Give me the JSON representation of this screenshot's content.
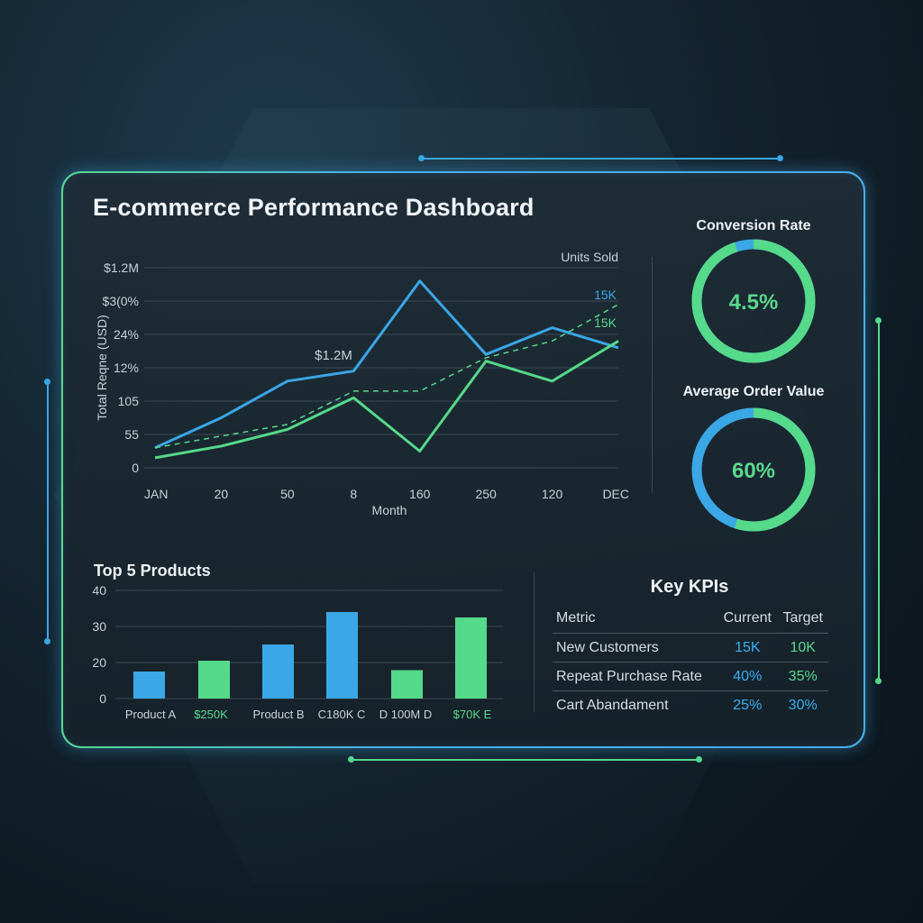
{
  "title": "E-commerce Performance Dashboard",
  "colors": {
    "blue": "#3aa7e6",
    "green": "#55d98a",
    "grid": "#3b4a54",
    "text": "#c9d2d8"
  },
  "chart_data": [
    {
      "type": "line",
      "name": "trend",
      "y_tick_labels": [
        "$1.2M",
        "$3(0%",
        "24%",
        "12%",
        "105",
        "55",
        "0"
      ],
      "ylabel": "Total Reqne (USD)",
      "xlabel": "Month",
      "x_tick_labels": [
        "JAN",
        "20",
        "50",
        "8",
        "160",
        "250",
        "120",
        "DEC"
      ],
      "right_label": "Units Sold",
      "annotations": [
        "$1.2M",
        "15K",
        "15K"
      ],
      "ylim": [
        0,
        6
      ],
      "series": [
        {
          "color": "blue",
          "style": "solid",
          "values": [
            0.6,
            1.5,
            2.6,
            2.9,
            5.6,
            3.4,
            4.2,
            3.6
          ]
        },
        {
          "color": "green",
          "style": "solid",
          "values": [
            0.3,
            0.65,
            1.15,
            2.1,
            0.5,
            3.2,
            2.6,
            3.8
          ]
        },
        {
          "color": "green",
          "style": "dashed",
          "values": [
            0.6,
            0.95,
            1.3,
            2.3,
            2.3,
            3.3,
            3.8,
            4.9
          ]
        }
      ]
    },
    {
      "type": "bar",
      "name": "top-products",
      "title": "Top 5 Products",
      "y_tick_labels": [
        "40",
        "30",
        "20",
        "0"
      ],
      "ylim": [
        0,
        40
      ],
      "categories": [
        "Product A",
        "$250K",
        "Product B",
        "C180K C",
        "D 100M D",
        "$70K E"
      ],
      "category_colors": [
        "text",
        "green",
        "text",
        "text",
        "text",
        "green"
      ],
      "values": [
        10,
        14,
        20,
        32,
        10.5,
        30
      ],
      "bar_colors": [
        "blue",
        "green",
        "blue",
        "blue",
        "green",
        "green"
      ]
    }
  ],
  "gauges": [
    {
      "title": "Conversion Rate",
      "value_label": "4.5%",
      "fraction": 0.95
    },
    {
      "title": "Average Order Value",
      "value_label": "60%",
      "fraction": 0.55
    }
  ],
  "kpis": {
    "title": "Key KPIs",
    "headers": [
      "Metric",
      "Current",
      "Target"
    ],
    "rows": [
      {
        "metric": "New Customers",
        "current": "15K",
        "target": "10K"
      },
      {
        "metric": "Repeat Purchase Rate",
        "current": "40%",
        "target": "35%"
      },
      {
        "metric": "Cart Abandament",
        "current": "25%",
        "target": "30%"
      }
    ]
  }
}
